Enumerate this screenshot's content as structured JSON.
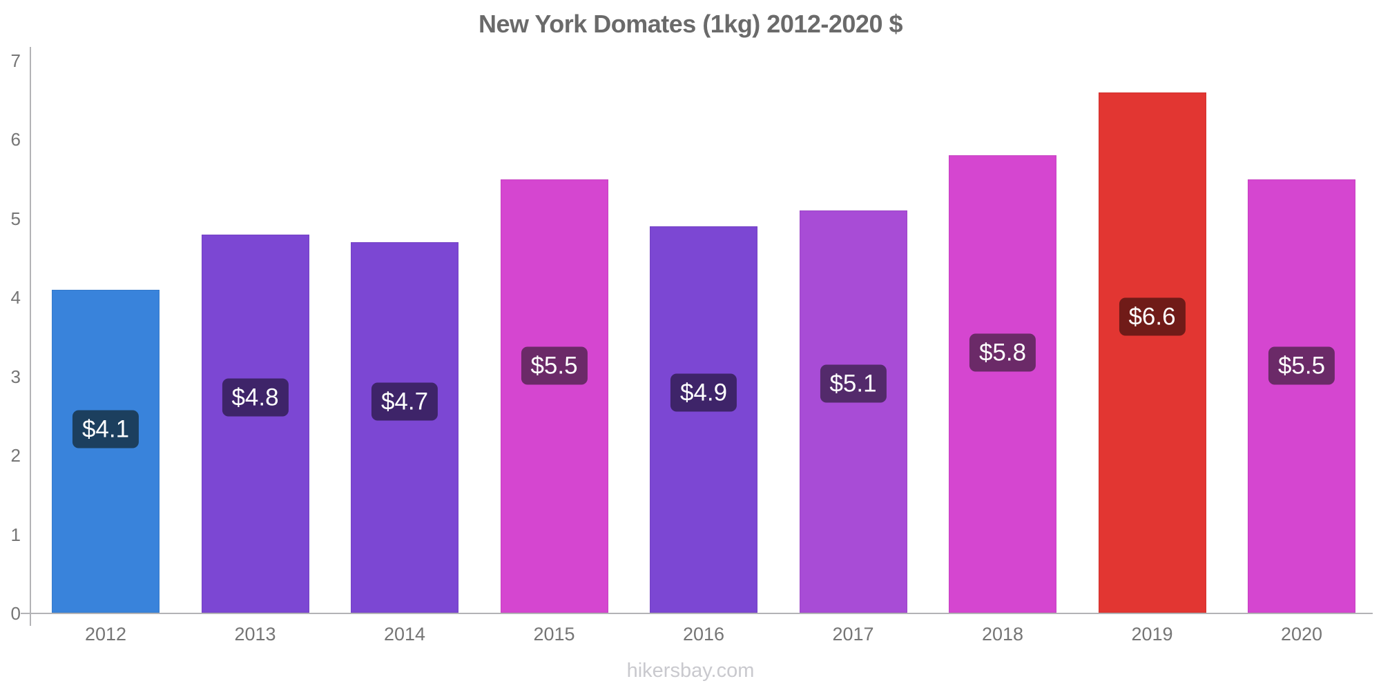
{
  "title": "New York Domates (1kg) 2012-2020 $",
  "footer": "hikersbay.com",
  "colors": {
    "axis": "#b3b3b6",
    "tick_text": "#757575",
    "title_text": "#6a6a6a",
    "footer_text": "#c9c9ce",
    "badge_text": "#ffffff",
    "background": "#ffffff"
  },
  "chart_data": {
    "type": "bar",
    "title": "New York Domates (1kg) 2012-2020 $",
    "xlabel": "",
    "ylabel": "",
    "ylim": [
      0,
      7
    ],
    "yticks": [
      0,
      1,
      2,
      3,
      4,
      5,
      6,
      7
    ],
    "grid": false,
    "legend_position": "none",
    "categories": [
      "2012",
      "2013",
      "2014",
      "2015",
      "2016",
      "2017",
      "2018",
      "2019",
      "2020"
    ],
    "values": [
      4.1,
      4.8,
      4.7,
      5.5,
      4.9,
      5.1,
      5.8,
      6.6,
      5.5
    ],
    "value_labels": [
      "$4.1",
      "$4.8",
      "$4.7",
      "$5.5",
      "$4.9",
      "$5.1",
      "$5.8",
      "$6.6",
      "$5.5"
    ],
    "bar_colors": [
      "#3983db",
      "#7c47d3",
      "#7c47d3",
      "#d546d0",
      "#7c47d3",
      "#a84cd6",
      "#d546d0",
      "#e23632",
      "#d546d0"
    ],
    "badge_colors": [
      "#1c3f5e",
      "#3e2469",
      "#3e2469",
      "#6b2a68",
      "#3e2469",
      "#532a6b",
      "#6b2a68",
      "#701b18",
      "#6b2a68"
    ]
  }
}
